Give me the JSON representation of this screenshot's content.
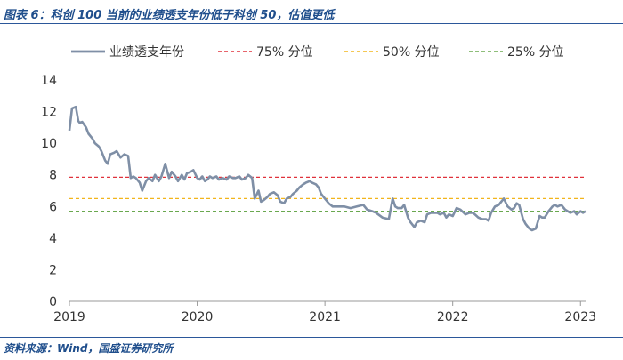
{
  "header": {
    "caption": "图表 6：科创 100 当前的业绩透支年份低于科创 50，估值更低"
  },
  "footer": {
    "source": "资料来源：Wind，国盛证券研究所"
  },
  "colors": {
    "series": "#7f8fa6",
    "p75": "#e0323c",
    "p50": "#f2b51b",
    "p25": "#6aa84f",
    "axis": "#999999",
    "text": "#333333",
    "caption": "#1f4e8c"
  },
  "chart_data": {
    "type": "line",
    "title": "",
    "xlabel": "",
    "ylabel": "",
    "ylim": [
      0,
      14
    ],
    "yticks": [
      0,
      2,
      4,
      6,
      8,
      10,
      12,
      14
    ],
    "xticks": [
      {
        "label": "2019",
        "x": 2019.0
      },
      {
        "label": "2020",
        "x": 2020.0
      },
      {
        "label": "2021",
        "x": 2021.0
      },
      {
        "label": "2022",
        "x": 2022.0
      },
      {
        "label": "2023",
        "x": 2023.0
      }
    ],
    "xlim": [
      2019.0,
      2023.04
    ],
    "grid": false,
    "legend_position": "top",
    "series": [
      {
        "name": "业绩透支年份",
        "style": "solid",
        "x": [
          2019.0,
          2019.02,
          2019.05,
          2019.07,
          2019.08,
          2019.1,
          2019.13,
          2019.15,
          2019.18,
          2019.2,
          2019.23,
          2019.25,
          2019.28,
          2019.3,
          2019.32,
          2019.35,
          2019.37,
          2019.4,
          2019.43,
          2019.46,
          2019.48,
          2019.5,
          2019.52,
          2019.55,
          2019.57,
          2019.6,
          2019.62,
          2019.65,
          2019.67,
          2019.7,
          2019.72,
          2019.75,
          2019.78,
          2019.8,
          2019.83,
          2019.85,
          2019.88,
          2019.9,
          2019.92,
          2019.95,
          2019.97,
          2020.0,
          2020.02,
          2020.04,
          2020.06,
          2020.08,
          2020.1,
          2020.12,
          2020.15,
          2020.17,
          2020.2,
          2020.23,
          2020.25,
          2020.28,
          2020.3,
          2020.33,
          2020.35,
          2020.38,
          2020.4,
          2020.43,
          2020.45,
          2020.48,
          2020.5,
          2020.52,
          2020.55,
          2020.57,
          2020.6,
          2020.63,
          2020.65,
          2020.68,
          2020.7,
          2020.73,
          2020.75,
          2020.78,
          2020.8,
          2020.83,
          2020.85,
          2020.88,
          2020.9,
          2020.93,
          2020.95,
          2020.97,
          2021.0,
          2021.03,
          2021.06,
          2021.1,
          2021.15,
          2021.2,
          2021.25,
          2021.3,
          2021.33,
          2021.37,
          2021.4,
          2021.45,
          2021.5,
          2021.53,
          2021.55,
          2021.57,
          2021.6,
          2021.62,
          2021.65,
          2021.67,
          2021.7,
          2021.72,
          2021.75,
          2021.78,
          2021.8,
          2021.83,
          2021.85,
          2021.88,
          2021.9,
          2021.93,
          2021.95,
          2021.97,
          2022.0,
          2022.03,
          2022.06,
          2022.1,
          2022.13,
          2022.16,
          2022.2,
          2022.23,
          2022.26,
          2022.28,
          2022.3,
          2022.33,
          2022.36,
          2022.38,
          2022.4,
          2022.43,
          2022.46,
          2022.48,
          2022.5,
          2022.52,
          2022.55,
          2022.57,
          2022.6,
          2022.62,
          2022.65,
          2022.68,
          2022.7,
          2022.72,
          2022.75,
          2022.78,
          2022.8,
          2022.82,
          2022.85,
          2022.88,
          2022.9,
          2022.92,
          2022.95,
          2022.97,
          2023.0,
          2023.02,
          2023.04
        ],
        "y": [
          10.8,
          12.2,
          12.3,
          11.4,
          11.3,
          11.35,
          11.0,
          10.6,
          10.3,
          10.0,
          9.8,
          9.5,
          8.9,
          8.7,
          9.3,
          9.4,
          9.5,
          9.1,
          9.3,
          9.2,
          7.8,
          7.9,
          7.8,
          7.5,
          7.0,
          7.6,
          7.8,
          7.6,
          8.0,
          7.6,
          7.9,
          8.7,
          7.8,
          8.2,
          7.9,
          7.6,
          8.0,
          7.7,
          8.1,
          8.2,
          8.3,
          7.8,
          7.7,
          7.9,
          7.6,
          7.7,
          7.9,
          7.8,
          7.9,
          7.7,
          7.8,
          7.7,
          7.9,
          7.8,
          7.8,
          7.9,
          7.7,
          7.8,
          8.0,
          7.8,
          6.5,
          7.0,
          6.3,
          6.4,
          6.6,
          6.8,
          6.9,
          6.7,
          6.3,
          6.2,
          6.5,
          6.6,
          6.8,
          7.0,
          7.2,
          7.4,
          7.5,
          7.6,
          7.5,
          7.4,
          7.2,
          6.8,
          6.5,
          6.2,
          6.0,
          6.0,
          6.0,
          5.9,
          6.0,
          6.1,
          5.8,
          5.7,
          5.6,
          5.3,
          5.2,
          6.5,
          6.0,
          5.9,
          5.9,
          6.1,
          5.3,
          5.0,
          4.7,
          5.0,
          5.1,
          5.0,
          5.5,
          5.6,
          5.6,
          5.6,
          5.5,
          5.6,
          5.3,
          5.5,
          5.4,
          5.9,
          5.8,
          5.5,
          5.6,
          5.6,
          5.3,
          5.2,
          5.2,
          5.1,
          5.6,
          6.0,
          6.1,
          6.3,
          6.5,
          6.0,
          5.8,
          5.9,
          6.2,
          6.1,
          5.2,
          4.9,
          4.6,
          4.5,
          4.6,
          5.4,
          5.3,
          5.3,
          5.7,
          6.0,
          6.1,
          6.0,
          6.1,
          5.8,
          5.7,
          5.6,
          5.7,
          5.5,
          5.7,
          5.6,
          5.7
        ]
      },
      {
        "name": "75% 分位",
        "style": "dashed",
        "value": 7.85
      },
      {
        "name": "50% 分位",
        "style": "dashed",
        "value": 6.5
      },
      {
        "name": "25% 分位",
        "style": "dashed",
        "value": 5.7
      }
    ]
  }
}
